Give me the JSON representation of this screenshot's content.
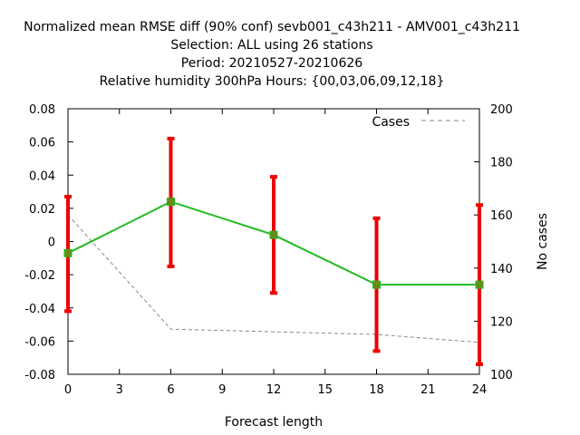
{
  "chart_data": {
    "type": "line",
    "title_lines": [
      "Normalized mean RMSE diff (90% conf) sevb001_c43h211 - AMV001_c43h211",
      "Selection: ALL using    26 stations",
      "Period: 20210527-20210626",
      "Relative humidity 300hPa   Hours: {00,03,06,09,12,18}"
    ],
    "xlabel": "Forecast length",
    "ylabel": "",
    "y2label": "No cases",
    "xlim": [
      0,
      24
    ],
    "ylim": [
      -0.08,
      0.08
    ],
    "y2lim": [
      100,
      200
    ],
    "x_ticks": [
      0,
      3,
      6,
      9,
      12,
      15,
      18,
      21,
      24
    ],
    "y_ticks": [
      -0.08,
      -0.06,
      -0.04,
      -0.02,
      0,
      0.02,
      0.04,
      0.06,
      0.08
    ],
    "y2_ticks": [
      100,
      120,
      140,
      160,
      180,
      200
    ],
    "grid": false,
    "legend_position": "top-right",
    "series": [
      {
        "role": "rmse_diff",
        "color": "#22bb22",
        "x": [
          0,
          6,
          12,
          18,
          24
        ],
        "y": [
          -0.007,
          0.024,
          0.004,
          -0.026,
          -0.026
        ],
        "err_low": [
          -0.042,
          -0.015,
          -0.031,
          -0.066,
          -0.074
        ],
        "err_high": [
          0.027,
          0.062,
          0.039,
          0.014,
          0.022
        ]
      },
      {
        "name": "Cases",
        "color": "#888888",
        "axis": "right",
        "x": [
          0,
          6,
          12,
          18,
          24
        ],
        "y": [
          160,
          117,
          116,
          115,
          112
        ]
      }
    ],
    "errorbar_color": "#ee0000"
  }
}
